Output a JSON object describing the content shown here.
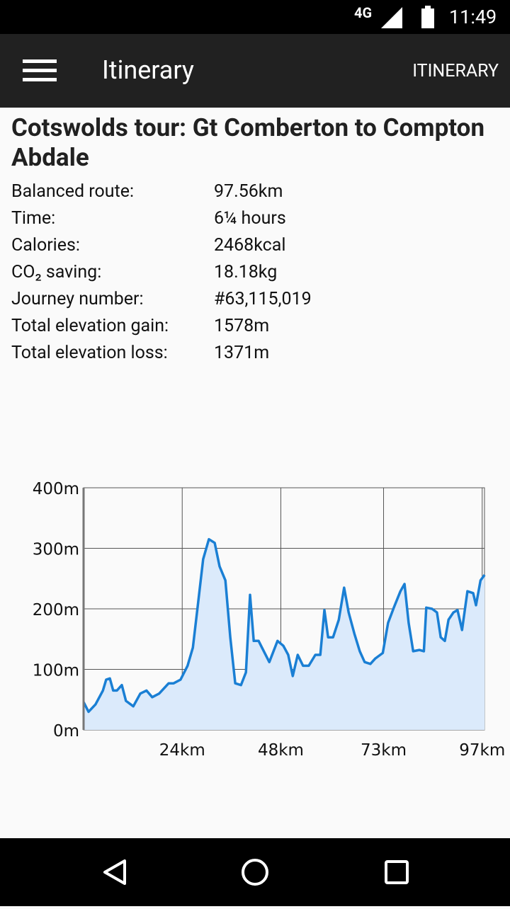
{
  "status_bar": {
    "network": "4G",
    "time": "11:49"
  },
  "app_bar": {
    "title": "Itinerary",
    "action": "ITINERARY"
  },
  "route": {
    "title": "Cotswolds tour: Gt Comberton to Compton Abdale",
    "rows": [
      [
        "Balanced route:",
        "97.56km"
      ],
      [
        "Time:",
        "6¼ hours"
      ],
      [
        "Calories:",
        "2468kcal"
      ],
      [
        "CO₂ saving:",
        "18.18kg"
      ],
      [
        "Journey number:",
        "#63,115,019"
      ],
      [
        "Total elevation gain:",
        "1578m"
      ],
      [
        "Total elevation loss:",
        "1371m"
      ]
    ]
  },
  "chart_data": {
    "type": "area",
    "x": [
      0,
      1.2,
      2.9,
      4.7,
      5.5,
      6.4,
      7.2,
      8.1,
      9.3,
      10.3,
      12.1,
      13.8,
      15.3,
      16.7,
      18.4,
      20.7,
      21.9,
      23.6,
      25.3,
      26.6,
      27.9,
      29.1,
      30.5,
      31.9,
      33.1,
      34.5,
      35.7,
      36.9,
      38.3,
      39.5,
      40.5,
      41.4,
      42.6,
      43.4,
      45.2,
      47.2,
      48.6,
      49.8,
      50.9,
      52.1,
      53.4,
      54.8,
      56.4,
      57.6,
      58.6,
      59.5,
      60.7,
      62.1,
      63.4,
      64.5,
      65.9,
      67.2,
      68.4,
      69.8,
      71.0,
      72.8,
      74.1,
      75.5,
      77.1,
      78.1,
      79.1,
      80.2,
      81.7,
      82.8,
      83.4,
      84.8,
      86.0,
      86.9,
      87.9,
      88.8,
      90.0,
      91.0,
      92.1,
      93.4,
      94.8,
      95.5,
      96.6,
      97.6
    ],
    "values": [
      46,
      30,
      42,
      65,
      83,
      85,
      65,
      65,
      74,
      48,
      39,
      60,
      65,
      54,
      60,
      77,
      77,
      83,
      106,
      136,
      212,
      282,
      315,
      309,
      270,
      247,
      153,
      77,
      74,
      95,
      223,
      147,
      147,
      136,
      112,
      147,
      139,
      124,
      89,
      124,
      106,
      106,
      124,
      124,
      198,
      153,
      153,
      182,
      235,
      194,
      159,
      130,
      112,
      109,
      118,
      127,
      177,
      202,
      229,
      241,
      177,
      130,
      132,
      130,
      202,
      200,
      194,
      153,
      147,
      182,
      194,
      198,
      165,
      229,
      226,
      206,
      247,
      256
    ],
    "color": "#1a7fd4",
    "fill": "#dbeafb",
    "xlim": [
      0,
      97.56
    ],
    "ylim": [
      0,
      400
    ],
    "xticks": [
      {
        "value": 24,
        "label": "24km"
      },
      {
        "value": 48,
        "label": "48km"
      },
      {
        "value": 73,
        "label": "73km"
      },
      {
        "value": 97,
        "label": "97km"
      }
    ],
    "yticks": [
      {
        "value": 0,
        "label": "0m"
      },
      {
        "value": 100,
        "label": "100m"
      },
      {
        "value": 200,
        "label": "200m"
      },
      {
        "value": 300,
        "label": "300m"
      },
      {
        "value": 400,
        "label": "400m"
      }
    ],
    "grid": true
  }
}
